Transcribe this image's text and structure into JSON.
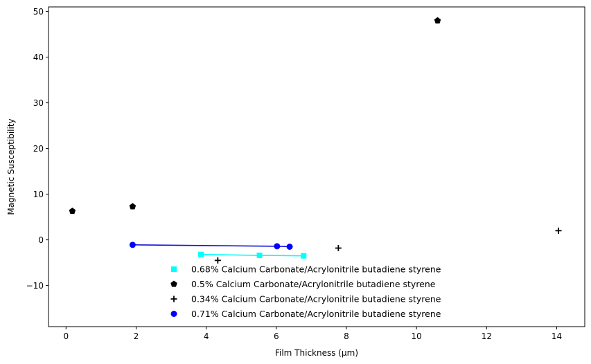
{
  "chart_data": {
    "type": "scatter",
    "title": "",
    "xlabel": "Film Thickness (μm)",
    "ylabel": "Magnetic Susceptibility",
    "xlim": [
      -0.5,
      14.8
    ],
    "ylim": [
      -19,
      51
    ],
    "xticks": [
      0,
      2,
      4,
      6,
      8,
      10,
      12,
      14
    ],
    "yticks": [
      -10,
      0,
      10,
      20,
      30,
      40,
      50
    ],
    "grid": false,
    "legend_position": "bottom-center",
    "series": [
      {
        "name": "0.68% Calcium Carbonate/Acrylonitrile butadiene styrene",
        "marker": "square",
        "color": "#00ffff",
        "line": true,
        "x": [
          3.85,
          5.52,
          6.78
        ],
        "y": [
          -3.2,
          -3.4,
          -3.5
        ]
      },
      {
        "name": "0.5% Calcium Carbonate/Acrylonitrile butadiene styrene",
        "marker": "pentagon",
        "color": "#000000",
        "line": false,
        "x": [
          0.18,
          1.9,
          10.6
        ],
        "y": [
          6.3,
          7.3,
          48.0
        ]
      },
      {
        "name": "0.34% Calcium Carbonate/Acrylonitrile butadiene styrene",
        "marker": "plus",
        "color": "#000000",
        "line": false,
        "x": [
          4.33,
          7.77,
          14.05
        ],
        "y": [
          -4.5,
          -1.8,
          2.0
        ]
      },
      {
        "name": "0.71% Calcium Carbonate/Acrylonitrile butadiene styrene",
        "marker": "circle",
        "color": "#0000ff",
        "line": true,
        "line_color": "#1010e0",
        "x": [
          1.9,
          6.02,
          6.38
        ],
        "y": [
          -1.1,
          -1.4,
          -1.5
        ]
      }
    ]
  }
}
